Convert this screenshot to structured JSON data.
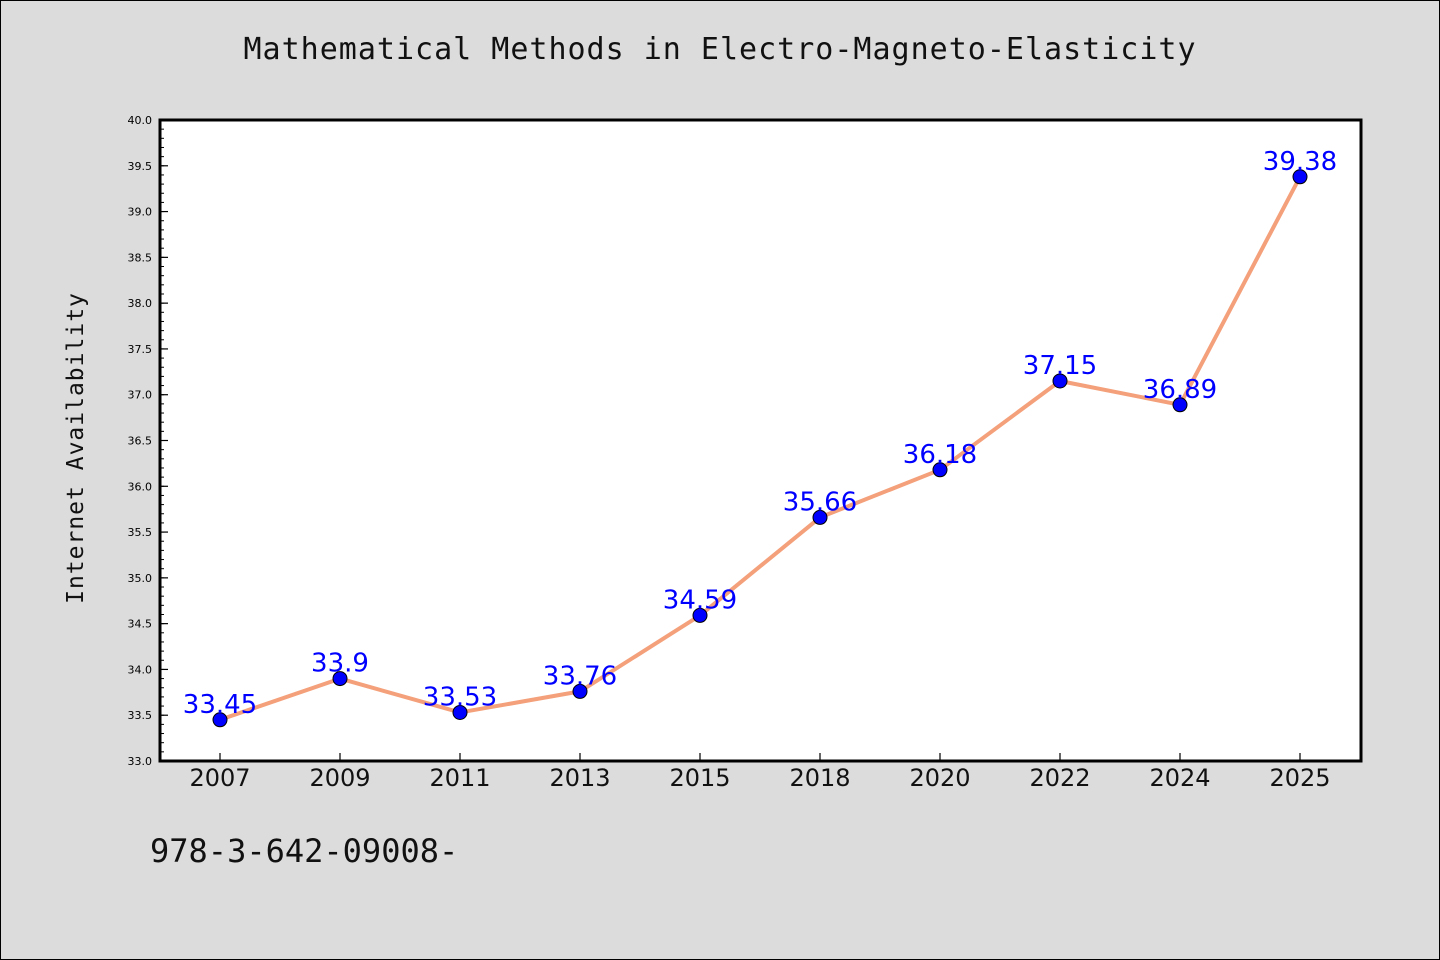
{
  "chart_data": {
    "type": "line",
    "title": "Mathematical Methods in Electro-Magneto-Elasticity",
    "ylabel": "Internet Availability",
    "xlabel": "",
    "categories": [
      "2007",
      "2009",
      "2011",
      "2013",
      "2015",
      "2018",
      "2020",
      "2022",
      "2024",
      "2025"
    ],
    "series": [
      {
        "values": [
          33.45,
          33.9,
          33.53,
          33.76,
          34.59,
          35.66,
          36.18,
          37.15,
          36.89,
          39.38
        ],
        "labels": [
          "33.45",
          "33.9",
          "33.53",
          "33.76",
          "34.59",
          "35.66",
          "36.18",
          "37.15",
          "36.89",
          "39.38"
        ]
      }
    ],
    "ylim": [
      33.0,
      40.0
    ],
    "yticks": [
      "33.0",
      "33.5",
      "34.0",
      "34.5",
      "35.0",
      "35.5",
      "36.0",
      "36.5",
      "37.0",
      "37.5",
      "38.0",
      "38.5",
      "39.0",
      "39.5",
      "40.0"
    ],
    "grid": false,
    "line_color": "#f4a07a",
    "marker_color": "#0000ff",
    "label_color": "#0000ff"
  },
  "footnote": "978-3-642-09008-"
}
